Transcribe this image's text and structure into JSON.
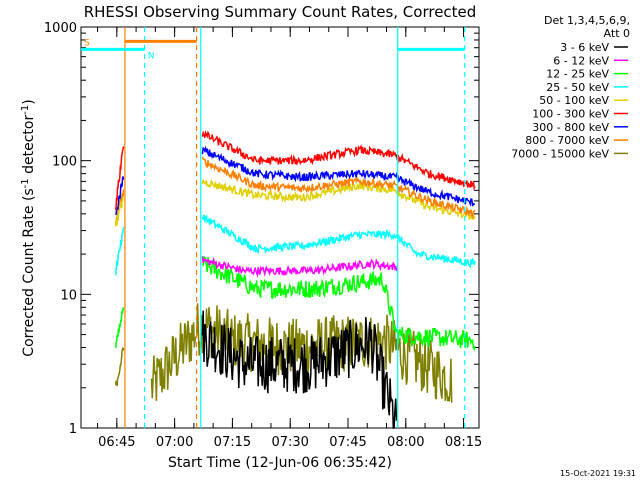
{
  "chart_data": {
    "type": "line",
    "title": "RHESSI Observing Summary Count Rates, Corrected",
    "ylabel_main": "Corrected Count Rate (s",
    "ylabel_sup1": "-1",
    "ylabel_mid": " detector",
    "ylabel_sup2": "-1",
    "ylabel_end": ")",
    "xlabel": "Start Time (12-Jun-06 06:35:42)",
    "y_scale": "log",
    "ylim": [
      1,
      1000
    ],
    "xlim_minutes": [
      "06:35:42",
      "08:19:00"
    ],
    "x_ticks": [
      "06:45",
      "07:00",
      "07:15",
      "07:30",
      "07:45",
      "08:00",
      "08:15"
    ],
    "y_ticks": [
      "1",
      "10",
      "100",
      "1000"
    ],
    "legend_header_1": "Det 1,3,4,5,6,9,",
    "legend_header_2": "Att 0",
    "series": [
      {
        "name": "3 - 6 keV",
        "color": "#000000"
      },
      {
        "name": "6 - 12 keV",
        "color": "#ff00ff"
      },
      {
        "name": "12 - 25 keV",
        "color": "#00ff00"
      },
      {
        "name": "25 - 50 keV",
        "color": "#00ffff"
      },
      {
        "name": "50 - 100 keV",
        "color": "#e0d000"
      },
      {
        "name": "100 - 300 keV",
        "color": "#ff0000"
      },
      {
        "name": "300 - 800 keV",
        "color": "#0000ff"
      },
      {
        "name": "800 - 7000 keV",
        "color": "#ff8000"
      },
      {
        "name": "7000 - 15000 keV",
        "color": "#808000"
      }
    ],
    "approx_levels": {
      "7000 - 15000 keV": [
        [
          6.9,
          2.0
        ],
        [
          7.08,
          5.0
        ],
        [
          7.12,
          6.0
        ],
        [
          7.25,
          4.5
        ],
        [
          7.5,
          4.0
        ],
        [
          7.9,
          4.5
        ],
        [
          8.0,
          3.5
        ],
        [
          8.2,
          2.3
        ]
      ],
      "3 - 6 keV": [
        [
          7.12,
          5.0
        ],
        [
          7.3,
          3.0
        ],
        [
          7.6,
          3.0
        ],
        [
          7.85,
          4.5
        ],
        [
          7.96,
          1.0
        ]
      ],
      "6 - 12 keV": [
        [
          7.12,
          18
        ],
        [
          7.3,
          15
        ],
        [
          7.6,
          15
        ],
        [
          7.85,
          17
        ],
        [
          7.96,
          16
        ]
      ],
      "12 - 25 keV": [
        [
          7.12,
          17
        ],
        [
          7.35,
          11
        ],
        [
          7.6,
          11
        ],
        [
          7.9,
          13
        ],
        [
          7.96,
          5
        ],
        [
          8.3,
          4.5
        ]
      ],
      "25 - 50 keV": [
        [
          7.12,
          38
        ],
        [
          7.35,
          22
        ],
        [
          7.55,
          23
        ],
        [
          7.8,
          28
        ],
        [
          7.95,
          28
        ],
        [
          8.05,
          20
        ],
        [
          8.3,
          17
        ]
      ],
      "50 - 100 keV": [
        [
          7.12,
          70
        ],
        [
          7.35,
          55
        ],
        [
          7.55,
          53
        ],
        [
          7.8,
          65
        ],
        [
          7.95,
          60
        ],
        [
          8.1,
          45
        ],
        [
          8.3,
          38
        ]
      ],
      "100 - 300 keV": [
        [
          7.12,
          160
        ],
        [
          7.35,
          100
        ],
        [
          7.55,
          100
        ],
        [
          7.8,
          120
        ],
        [
          7.95,
          110
        ],
        [
          8.1,
          80
        ],
        [
          8.3,
          65
        ]
      ],
      "300 - 800 keV": [
        [
          7.12,
          120
        ],
        [
          7.35,
          80
        ],
        [
          7.55,
          75
        ],
        [
          7.8,
          80
        ],
        [
          7.95,
          75
        ],
        [
          8.1,
          58
        ],
        [
          8.3,
          48
        ]
      ],
      "800 - 7000 keV": [
        [
          7.12,
          100
        ],
        [
          7.35,
          65
        ],
        [
          7.55,
          62
        ],
        [
          7.8,
          70
        ],
        [
          7.95,
          65
        ],
        [
          8.1,
          50
        ],
        [
          8.3,
          40
        ]
      ]
    },
    "flags": [
      {
        "label": "S",
        "color": "#ff8000"
      },
      {
        "label": "N",
        "color": "#00ffff"
      }
    ],
    "grid": false
  },
  "footer_timestamp": "15-Oct-2021 19:31"
}
